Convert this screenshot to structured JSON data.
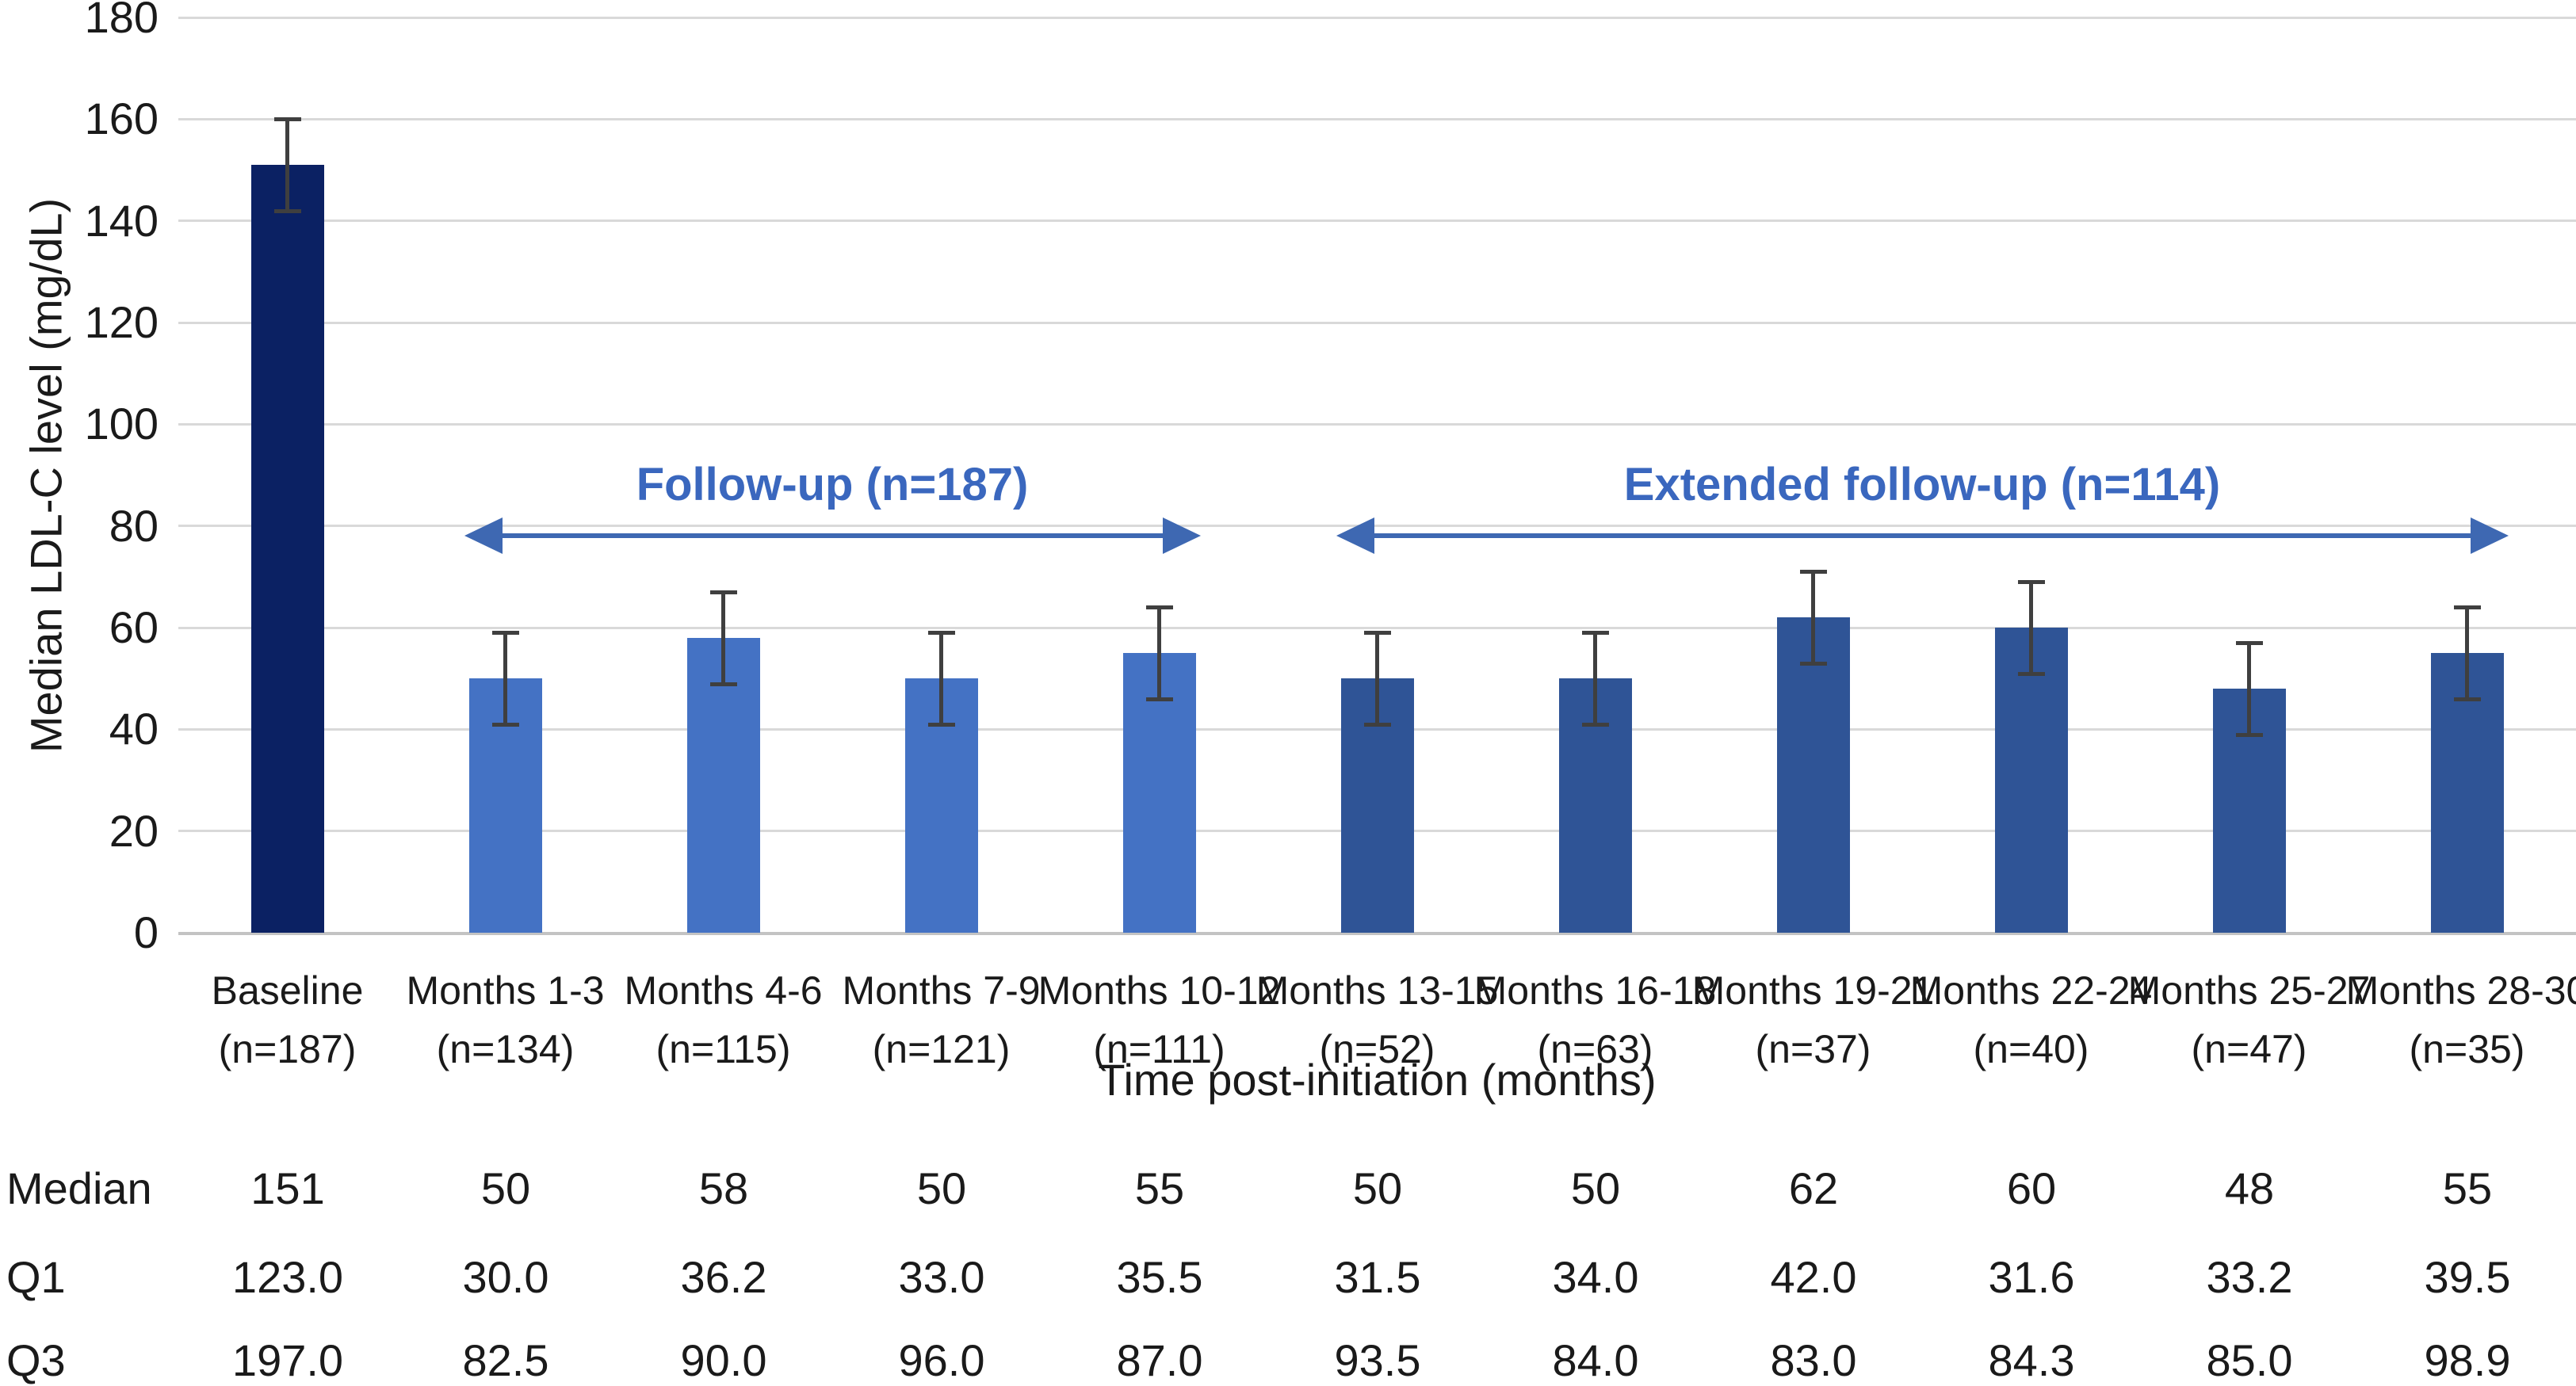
{
  "chart_data": {
    "type": "bar",
    "title": "",
    "xlabel": "Time post-initiation (months)",
    "ylabel": "Median LDL-C level (mg/dL)",
    "ylim": [
      0,
      180
    ],
    "yticks": [
      0,
      20,
      40,
      60,
      80,
      100,
      120,
      140,
      160,
      180
    ],
    "grid": true,
    "legend": "none",
    "categories": [
      {
        "label": "Baseline",
        "n_label": "(n=187)",
        "group": "baseline",
        "median": 151,
        "err_low": 142,
        "err_high": 160,
        "q1": "123.0",
        "q3": "197.0"
      },
      {
        "label": "Months 1-3",
        "n_label": "(n=134)",
        "group": "followup",
        "median": 50,
        "err_low": 41,
        "err_high": 59,
        "q1": "30.0",
        "q3": "82.5"
      },
      {
        "label": "Months 4-6",
        "n_label": "(n=115)",
        "group": "followup",
        "median": 58,
        "err_low": 49,
        "err_high": 67,
        "q1": "36.2",
        "q3": "90.0"
      },
      {
        "label": "Months 7-9",
        "n_label": "(n=121)",
        "group": "followup",
        "median": 50,
        "err_low": 41,
        "err_high": 59,
        "q1": "33.0",
        "q3": "96.0"
      },
      {
        "label": "Months 10-12",
        "n_label": "(n=111)",
        "group": "followup",
        "median": 55,
        "err_low": 46,
        "err_high": 64,
        "q1": "35.5",
        "q3": "87.0"
      },
      {
        "label": "Months 13-15",
        "n_label": "(n=52)",
        "group": "extended",
        "median": 50,
        "err_low": 41,
        "err_high": 59,
        "q1": "31.5",
        "q3": "93.5"
      },
      {
        "label": "Months 16-18",
        "n_label": "(n=63)",
        "group": "extended",
        "median": 50,
        "err_low": 41,
        "err_high": 59,
        "q1": "34.0",
        "q3": "84.0"
      },
      {
        "label": "Months 19-21",
        "n_label": "(n=37)",
        "group": "extended",
        "median": 62,
        "err_low": 53,
        "err_high": 71,
        "q1": "42.0",
        "q3": "83.0"
      },
      {
        "label": "Months 22-24",
        "n_label": "(n=40)",
        "group": "extended",
        "median": 60,
        "err_low": 51,
        "err_high": 69,
        "q1": "31.6",
        "q3": "84.3"
      },
      {
        "label": "Months 25-27",
        "n_label": "(n=47)",
        "group": "extended",
        "median": 48,
        "err_low": 39,
        "err_high": 57,
        "q1": "33.2",
        "q3": "85.0"
      },
      {
        "label": "Months 28-30",
        "n_label": "(n=35)",
        "group": "extended",
        "median": 55,
        "err_low": 46,
        "err_high": 64,
        "q1": "39.5",
        "q3": "98.9"
      }
    ],
    "series": [
      {
        "name": "Median LDL-C level",
        "values": [
          151,
          50,
          58,
          50,
          55,
          50,
          50,
          62,
          60,
          48,
          55
        ]
      }
    ],
    "colors": {
      "baseline": "#0b2163",
      "followup": "#4472c4",
      "extended": "#2f5496",
      "error_bar": "#3f3f3f",
      "gridline": "#d9d9d9",
      "annotation_text": "#3a67be",
      "annotation_arrow": "#3e68b2"
    },
    "annotations": [
      {
        "label": "Follow-up (n=187)",
        "from_cat": 1,
        "to_cat": 4,
        "y_value": 80
      },
      {
        "label": "Extended follow-up (n=114)",
        "from_cat": 5,
        "to_cat": 10,
        "y_value": 80
      }
    ],
    "table": {
      "row_labels": [
        "Median",
        "Q1",
        "Q3"
      ],
      "rows": [
        {
          "label": "Median",
          "values": [
            "151",
            "50",
            "58",
            "50",
            "55",
            "50",
            "50",
            "62",
            "60",
            "48",
            "55"
          ]
        },
        {
          "label": "Q1",
          "values": [
            "123.0",
            "30.0",
            "36.2",
            "33.0",
            "35.5",
            "31.5",
            "34.0",
            "42.0",
            "31.6",
            "33.2",
            "39.5"
          ]
        },
        {
          "label": "Q3",
          "values": [
            "197.0",
            "82.5",
            "90.0",
            "96.0",
            "87.0",
            "93.5",
            "84.0",
            "83.0",
            "84.3",
            "85.0",
            "98.9"
          ]
        }
      ]
    }
  }
}
